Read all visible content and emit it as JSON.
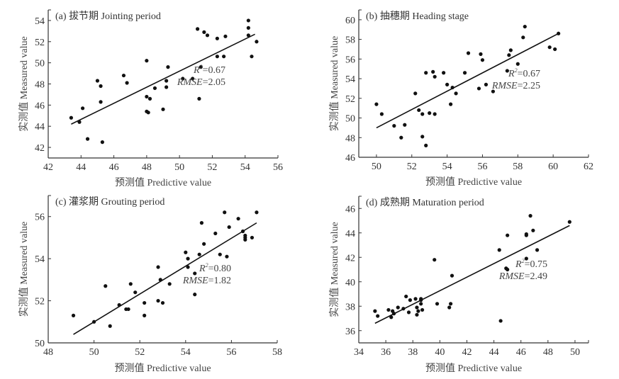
{
  "chart_data": [
    {
      "type": "scatter",
      "panel": "a",
      "title": "(a) 拔节期 Jointing period",
      "xlabel": "预测值 Predictive value",
      "ylabel": "实测值 Measured value",
      "xlim": [
        42,
        56
      ],
      "ylim": [
        41,
        55
      ],
      "xticks": [
        "42",
        "44",
        "46",
        "48",
        "50",
        "52",
        "54",
        "56"
      ],
      "yticks": [
        "42",
        "44",
        "46",
        "48",
        "50",
        "52",
        "54"
      ],
      "r2_label": "R",
      "r2_sup": "2",
      "r2_value": "=0.67",
      "rmse_label": "RMSE",
      "rmse_value": "=2.05",
      "fit_line": {
        "x": [
          43.4,
          54.6
        ],
        "y": [
          44.2,
          52.7
        ]
      },
      "x": [
        43.4,
        43.9,
        44.1,
        44.4,
        45.0,
        45.2,
        45.2,
        45.3,
        46.6,
        46.8,
        48.0,
        48.0,
        48.0,
        48.1,
        48.2,
        48.5,
        49.0,
        49.2,
        49.2,
        49.3,
        50.2,
        50.8,
        51.1,
        51.2,
        51.3,
        51.5,
        51.7,
        52.3,
        52.3,
        52.7,
        52.8,
        54.2,
        54.2,
        54.2,
        54.4,
        54.7
      ],
      "y": [
        44.8,
        44.4,
        45.7,
        42.8,
        48.3,
        47.8,
        46.3,
        42.5,
        48.8,
        48.1,
        50.2,
        46.8,
        45.4,
        45.3,
        46.6,
        47.6,
        45.6,
        48.3,
        47.7,
        49.6,
        48.5,
        48.5,
        53.2,
        46.6,
        49.6,
        52.9,
        52.6,
        52.3,
        50.6,
        50.6,
        52.5,
        54.0,
        53.3,
        52.6,
        50.6,
        52.0
      ]
    },
    {
      "type": "scatter",
      "panel": "b",
      "title": "(b) 抽穗期 Heading stage",
      "xlabel": "预测值 Predictive value",
      "ylabel": "实测值 Measured value",
      "xlim": [
        49,
        62
      ],
      "ylim": [
        46,
        61
      ],
      "xticks": [
        "50",
        "52",
        "54",
        "56",
        "58",
        "60",
        "62"
      ],
      "yticks": [
        "46",
        "48",
        "50",
        "52",
        "54",
        "56",
        "58",
        "60"
      ],
      "r2_label": "R",
      "r2_sup": "2",
      "r2_value": "=0.67",
      "rmse_label": "RMSE",
      "rmse_value": "=2.25",
      "fit_line": {
        "x": [
          50.0,
          60.3
        ],
        "y": [
          49.0,
          58.6
        ]
      },
      "x": [
        50.0,
        50.3,
        51.0,
        51.4,
        51.6,
        52.2,
        52.4,
        52.6,
        52.6,
        52.8,
        52.8,
        53.0,
        53.2,
        53.3,
        53.3,
        53.8,
        54.0,
        54.2,
        54.3,
        54.5,
        55.0,
        55.2,
        55.8,
        55.9,
        56.0,
        56.2,
        56.6,
        57.4,
        57.5,
        57.6,
        58.0,
        58.3,
        58.4,
        59.8,
        60.1,
        60.3
      ],
      "y": [
        51.4,
        50.4,
        49.2,
        48.0,
        49.3,
        52.5,
        50.8,
        50.4,
        48.1,
        47.2,
        54.6,
        50.5,
        54.7,
        54.2,
        50.4,
        54.6,
        53.4,
        51.4,
        53.1,
        52.5,
        54.6,
        56.6,
        53.0,
        56.5,
        55.9,
        53.4,
        52.7,
        54.8,
        56.4,
        56.9,
        55.5,
        58.2,
        59.3,
        57.2,
        57.0,
        58.6
      ]
    },
    {
      "type": "scatter",
      "panel": "c",
      "title": "(c) 灌浆期 Grouting period",
      "xlabel": "预测值 Predictive value",
      "ylabel": "实测值 Measured value",
      "xlim": [
        48,
        58
      ],
      "ylim": [
        50,
        57
      ],
      "xticks": [
        "48",
        "50",
        "52",
        "54",
        "56",
        "58"
      ],
      "yticks": [
        "50",
        "52",
        "54",
        "56"
      ],
      "r2_label": "R",
      "r2_sup": "2",
      "r2_value": "=0.80",
      "rmse_label": "RMSE",
      "rmse_value": "=1.82",
      "fit_line": {
        "x": [
          49.1,
          57.1
        ],
        "y": [
          50.4,
          55.7
        ]
      },
      "x": [
        49.1,
        50.0,
        50.5,
        50.7,
        51.1,
        51.4,
        51.5,
        51.6,
        51.8,
        52.2,
        52.2,
        52.8,
        52.8,
        52.9,
        53.0,
        53.3,
        54.0,
        54.1,
        54.1,
        54.4,
        54.4,
        54.6,
        54.7,
        54.8,
        55.3,
        55.5,
        55.7,
        55.8,
        55.9,
        56.3,
        56.5,
        56.6,
        56.6,
        56.6,
        56.9,
        57.1
      ],
      "y": [
        51.3,
        51.0,
        52.7,
        50.8,
        51.8,
        51.6,
        51.6,
        52.8,
        52.4,
        51.9,
        51.3,
        53.6,
        52.0,
        53.0,
        51.9,
        52.8,
        54.3,
        53.6,
        54.0,
        53.3,
        52.3,
        54.2,
        55.7,
        54.7,
        55.2,
        54.2,
        56.2,
        54.1,
        55.5,
        55.9,
        55.3,
        55.1,
        54.9,
        55.0,
        55.0,
        56.2
      ]
    },
    {
      "type": "scatter",
      "panel": "d",
      "title": "(d) 成熟期 Maturation period",
      "xlabel": "预测值 Predictive value",
      "ylabel": "实测值 Measured value",
      "xlim": [
        34,
        51
      ],
      "ylim": [
        35,
        47
      ],
      "xticks": [
        "34",
        "36",
        "38",
        "40",
        "42",
        "44",
        "46",
        "48",
        "50"
      ],
      "yticks": [
        "36",
        "38",
        "40",
        "42",
        "44",
        "46"
      ],
      "r2_label": "R",
      "r2_sup": "2",
      "r2_value": "=0.75",
      "rmse_label": "RMSE",
      "rmse_value": "=2.49",
      "fit_line": {
        "x": [
          35.2,
          49.6
        ],
        "y": [
          36.6,
          44.6
        ]
      },
      "x": [
        35.2,
        35.4,
        36.2,
        36.4,
        36.5,
        36.6,
        36.9,
        37.3,
        37.5,
        37.7,
        37.8,
        38.2,
        38.3,
        38.3,
        38.4,
        38.6,
        38.6,
        38.7,
        38.6,
        39.6,
        39.8,
        40.7,
        40.8,
        40.9,
        44.4,
        44.5,
        44.9,
        45.0,
        45.0,
        46.4,
        46.4,
        46.4,
        46.7,
        46.9,
        47.2,
        49.6
      ],
      "y": [
        37.6,
        37.2,
        37.7,
        37.1,
        37.6,
        37.4,
        37.9,
        37.8,
        38.8,
        37.5,
        38.5,
        38.6,
        37.3,
        37.9,
        37.6,
        38.2,
        38.5,
        37.7,
        38.6,
        41.8,
        38.2,
        37.9,
        38.2,
        40.5,
        42.6,
        36.8,
        41.1,
        41.0,
        43.8,
        43.8,
        43.9,
        41.9,
        45.4,
        44.2,
        42.6,
        44.9
      ]
    }
  ]
}
